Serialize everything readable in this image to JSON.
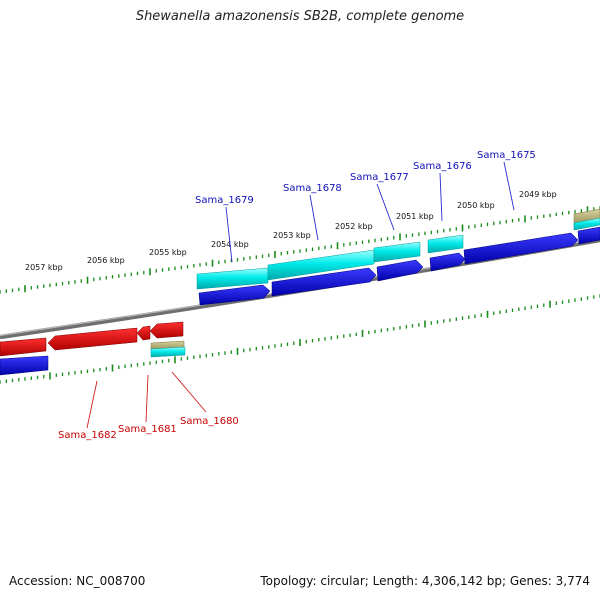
{
  "title": "Shewanella amazonensis SB2B, complete genome",
  "footer": {
    "accession_text": "Accession: NC_008700",
    "info_text": "Topology: circular; Length: 4,306,142 bp; Genes: 3,774"
  },
  "ruler": {
    "labels": [
      "2057 kbp",
      "2056 kbp",
      "2055 kbp",
      "2054 kbp",
      "2053 kbp",
      "2052 kbp",
      "2051 kbp",
      "2050 kbp",
      "2049 kbp"
    ]
  },
  "genes": {
    "top": [
      "Sama_1679",
      "Sama_1678",
      "Sama_1677",
      "Sama_1676",
      "Sama_1675"
    ],
    "bottom": [
      "Sama_1682",
      "Sama_1681",
      "Sama_1680"
    ]
  },
  "colors": {
    "background": "#ffffff",
    "forward_gene": "#0000dd",
    "reverse_gene": "#dd0000",
    "cyan_feature": "#00e5e5",
    "olive_feature": "#b5ae72",
    "tick": "#1a8a1a",
    "backbone": "#8a8a8a",
    "top_label": "#1010b8",
    "bottom_label": "#c80000"
  }
}
